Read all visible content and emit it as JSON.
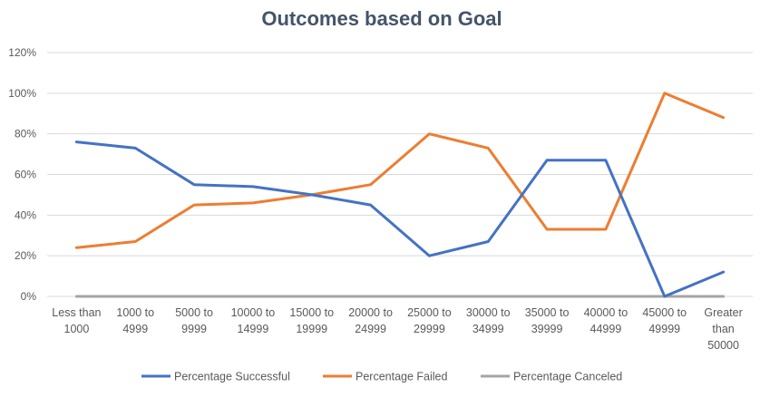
{
  "chart_data": {
    "type": "line",
    "title": "Outcomes based on Goal",
    "categories": [
      [
        "Less than",
        "1000"
      ],
      [
        "1000 to",
        "4999"
      ],
      [
        "5000 to",
        "9999"
      ],
      [
        "10000 to",
        "14999"
      ],
      [
        "15000 to",
        "19999"
      ],
      [
        "20000 to",
        "24999"
      ],
      [
        "25000 to",
        "29999"
      ],
      [
        "30000 to",
        "34999"
      ],
      [
        "35000 to",
        "39999"
      ],
      [
        "40000 to",
        "44999"
      ],
      [
        "45000 to",
        "49999"
      ],
      [
        "Greater",
        "than",
        "50000"
      ]
    ],
    "yticks": [
      "0%",
      "20%",
      "40%",
      "60%",
      "80%",
      "100%",
      "120%"
    ],
    "ylim": [
      0,
      120
    ],
    "grid": true,
    "legend_position": "bottom",
    "series": [
      {
        "name": "Percentage Successful",
        "color": "#4472c4",
        "values": [
          76,
          73,
          55,
          54,
          50,
          45,
          20,
          27,
          67,
          67,
          0,
          12
        ]
      },
      {
        "name": "Percentage Failed",
        "color": "#ed7d31",
        "values": [
          24,
          27,
          45,
          46,
          50,
          55,
          80,
          73,
          33,
          33,
          100,
          88
        ]
      },
      {
        "name": "Percentage Canceled",
        "color": "#a5a5a5",
        "values": [
          0,
          0,
          0,
          0,
          0,
          0,
          0,
          0,
          0,
          0,
          0,
          0
        ]
      }
    ]
  }
}
